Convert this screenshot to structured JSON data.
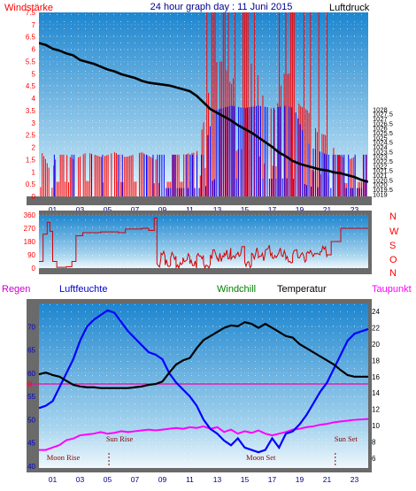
{
  "page": {
    "title": "24 hour graph day : 11 Juni 2015"
  },
  "colors": {
    "frame": "#5a5a5a",
    "panel_top": "#1f86cf",
    "panel_bottom": "#eaf5fb",
    "wind": "#ff0000",
    "gust": "#0000ff",
    "pressure": "#000000",
    "direction": "#d40000",
    "temperature": "#000000",
    "humidity": "#0000ff",
    "dewpoint": "#ff00ff",
    "zero_line": "#ff00aa",
    "sun_moon": "#8b0000",
    "windchill_label": "#008000"
  },
  "chart_data": [
    {
      "type": "line",
      "name": "wind_pressure",
      "labels": {
        "left": "Windstärke",
        "right": "Luftdruck"
      },
      "x_ticks": [
        "01",
        "03",
        "05",
        "07",
        "09",
        "11",
        "13",
        "15",
        "17",
        "19",
        "21",
        "23"
      ],
      "x_range": [
        0,
        24
      ],
      "y_left": {
        "range": [
          0,
          7.5
        ],
        "ticks": [
          "0",
          "0.5",
          "1",
          "1.5",
          "2",
          "2.5",
          "3",
          "3.5",
          "4",
          "4.5",
          "5",
          "5.5",
          "6",
          "6.5",
          "7",
          "7.5"
        ]
      },
      "y_right": {
        "range": [
          1018.75,
          1038.25
        ],
        "ticks": [
          "1019",
          "1019.5",
          "1020",
          "1020.5",
          "1021",
          "1021.5",
          "1022",
          "1022.5",
          "1023",
          "1023.5",
          "1024",
          "1024.5",
          "1025",
          "1025.5",
          "1026",
          "1026.5",
          "1027",
          "1027.5",
          "1028"
        ]
      },
      "wind_level": [
        [
          0,
          0
        ],
        [
          0.2,
          1.8
        ],
        [
          0.5,
          1.5
        ],
        [
          0.9,
          0.9
        ],
        [
          1.3,
          1.7
        ],
        [
          2.0,
          1.7
        ],
        [
          2.6,
          1.5
        ],
        [
          3.5,
          1.8
        ],
        [
          4.6,
          1.6
        ],
        [
          5.5,
          1.8
        ],
        [
          6.3,
          1.6
        ],
        [
          7.5,
          1.8
        ],
        [
          8.5,
          1.5
        ],
        [
          9.3,
          1.7
        ],
        [
          10.4,
          1.7
        ],
        [
          11.5,
          1.8
        ],
        [
          12.2,
          3.5
        ],
        [
          12.6,
          5.3
        ],
        [
          13.0,
          5.5
        ],
        [
          13.5,
          5.5
        ],
        [
          14.0,
          4.5
        ],
        [
          14.5,
          5.5
        ],
        [
          15.2,
          5.5
        ],
        [
          15.8,
          5.3
        ],
        [
          16.5,
          3.7
        ],
        [
          17.3,
          3.5
        ],
        [
          17.8,
          5.0
        ],
        [
          18.3,
          5.0
        ],
        [
          19.0,
          3.7
        ],
        [
          19.6,
          3.5
        ],
        [
          20.3,
          2.6
        ],
        [
          20.9,
          2.5
        ],
        [
          21.8,
          1.7
        ],
        [
          22.6,
          1.5
        ],
        [
          23.3,
          1.7
        ],
        [
          24,
          1.7
        ]
      ],
      "gust_level": [
        [
          0,
          1.7
        ],
        [
          2.0,
          1.7
        ],
        [
          4.0,
          1.7
        ],
        [
          6.0,
          1.7
        ],
        [
          8.0,
          1.7
        ],
        [
          9.5,
          1.7
        ],
        [
          11.0,
          1.7
        ],
        [
          12.0,
          1.7
        ],
        [
          12.4,
          2.7
        ],
        [
          12.8,
          3.5
        ],
        [
          14.0,
          3.7
        ],
        [
          15.0,
          3.6
        ],
        [
          16.0,
          3.7
        ],
        [
          17.0,
          3.6
        ],
        [
          18.0,
          3.7
        ],
        [
          18.6,
          3.6
        ],
        [
          19.2,
          2.7
        ],
        [
          19.8,
          2.0
        ],
        [
          21.0,
          1.7
        ],
        [
          24,
          1.7
        ]
      ],
      "pressure": [
        [
          0.0,
          1035.0
        ],
        [
          0.5,
          1034.8
        ],
        [
          1.0,
          1034.4
        ],
        [
          1.5,
          1034.2
        ],
        [
          2.0,
          1033.9
        ],
        [
          2.5,
          1033.7
        ],
        [
          3.0,
          1033.2
        ],
        [
          3.5,
          1033.0
        ],
        [
          4.0,
          1032.8
        ],
        [
          4.5,
          1032.5
        ],
        [
          5.0,
          1032.2
        ],
        [
          5.5,
          1032.0
        ],
        [
          6.0,
          1031.7
        ],
        [
          6.5,
          1031.5
        ],
        [
          7.0,
          1031.3
        ],
        [
          7.5,
          1031.0
        ],
        [
          8.0,
          1030.8
        ],
        [
          8.5,
          1030.7
        ],
        [
          9.0,
          1030.6
        ],
        [
          9.5,
          1030.5
        ],
        [
          10.0,
          1030.3
        ],
        [
          10.5,
          1030.1
        ],
        [
          11.0,
          1029.9
        ],
        [
          11.5,
          1029.4
        ],
        [
          12.0,
          1028.7
        ],
        [
          12.5,
          1028.0
        ],
        [
          13.0,
          1027.6
        ],
        [
          13.5,
          1027.2
        ],
        [
          14.0,
          1026.8
        ],
        [
          14.5,
          1026.3
        ],
        [
          15.0,
          1025.9
        ],
        [
          15.5,
          1025.5
        ],
        [
          16.0,
          1025.0
        ],
        [
          16.5,
          1024.5
        ],
        [
          17.0,
          1024.0
        ],
        [
          17.5,
          1023.4
        ],
        [
          18.0,
          1023.0
        ],
        [
          18.5,
          1022.5
        ],
        [
          19.0,
          1022.2
        ],
        [
          19.5,
          1022.0
        ],
        [
          20.0,
          1021.8
        ],
        [
          20.5,
          1021.6
        ],
        [
          21.0,
          1021.5
        ],
        [
          21.5,
          1021.3
        ],
        [
          22.0,
          1021.2
        ],
        [
          22.5,
          1021.0
        ],
        [
          23.0,
          1020.8
        ],
        [
          23.5,
          1020.5
        ],
        [
          24.0,
          1020.3
        ]
      ]
    },
    {
      "type": "line",
      "name": "wind_direction",
      "x_range": [
        0,
        24
      ],
      "y_left": {
        "range": [
          0,
          360
        ],
        "ticks": [
          "0",
          "90",
          "180",
          "270",
          "360"
        ]
      },
      "y_right_labels": [
        "N",
        "W",
        "S",
        "O",
        "N"
      ],
      "series": [
        [
          0,
          45
        ],
        [
          0.3,
          230
        ],
        [
          0.6,
          310
        ],
        [
          0.8,
          250
        ],
        [
          1.0,
          45
        ],
        [
          1.3,
          5
        ],
        [
          2.0,
          10
        ],
        [
          2.4,
          45
        ],
        [
          2.7,
          220
        ],
        [
          3.2,
          240
        ],
        [
          4.5,
          245
        ],
        [
          5.8,
          240
        ],
        [
          6.3,
          265
        ],
        [
          7.5,
          270
        ],
        [
          8.0,
          255
        ],
        [
          8.4,
          340
        ],
        [
          8.6,
          30
        ],
        [
          8.9,
          100
        ],
        [
          9.2,
          20
        ],
        [
          9.6,
          70
        ],
        [
          10.0,
          5
        ],
        [
          10.5,
          70
        ],
        [
          11.0,
          30
        ],
        [
          11.5,
          80
        ],
        [
          12.0,
          30
        ],
        [
          12.5,
          90
        ],
        [
          13.0,
          70
        ],
        [
          13.5,
          100
        ],
        [
          14.0,
          60
        ],
        [
          14.5,
          110
        ],
        [
          15.0,
          40
        ],
        [
          15.5,
          100
        ],
        [
          16.0,
          70
        ],
        [
          16.5,
          120
        ],
        [
          17.0,
          70
        ],
        [
          17.5,
          110
        ],
        [
          18.0,
          60
        ],
        [
          18.5,
          90
        ],
        [
          19.0,
          70
        ],
        [
          19.5,
          100
        ],
        [
          20.0,
          80
        ],
        [
          20.5,
          110
        ],
        [
          21.0,
          90
        ],
        [
          21.3,
          180
        ],
        [
          22.0,
          270
        ],
        [
          24,
          270
        ]
      ]
    },
    {
      "type": "line",
      "name": "climate",
      "labels": {
        "regen": "Regen",
        "humidity": "Luftfeuchte",
        "windchill": "Windchill",
        "temperature": "Temperatur",
        "dewpoint": "Taupunkt"
      },
      "x_range": [
        0,
        24
      ],
      "y_left": {
        "range": [
          40,
          75
        ],
        "ticks": [
          "40",
          "45",
          "50",
          "55",
          "60",
          "65",
          "70"
        ]
      },
      "y_right": {
        "range": [
          5,
          25
        ],
        "ticks": [
          "6",
          "8",
          "10",
          "12",
          "14",
          "16",
          "18",
          "20",
          "22",
          "24"
        ]
      },
      "zero_marker": "0",
      "temperature": [
        [
          0,
          16.3
        ],
        [
          0.5,
          16.5
        ],
        [
          1.0,
          16.2
        ],
        [
          1.5,
          16.0
        ],
        [
          2.0,
          15.5
        ],
        [
          2.5,
          15.0
        ],
        [
          3.0,
          14.8
        ],
        [
          3.5,
          14.7
        ],
        [
          4.0,
          14.7
        ],
        [
          4.5,
          14.6
        ],
        [
          5.0,
          14.6
        ],
        [
          5.5,
          14.6
        ],
        [
          6.0,
          14.6
        ],
        [
          6.5,
          14.6
        ],
        [
          7.0,
          14.7
        ],
        [
          7.5,
          14.8
        ],
        [
          8.0,
          15.0
        ],
        [
          8.5,
          15.1
        ],
        [
          9.0,
          15.4
        ],
        [
          9.5,
          16.5
        ],
        [
          10.0,
          17.5
        ],
        [
          10.5,
          18.0
        ],
        [
          11.0,
          18.3
        ],
        [
          11.5,
          19.5
        ],
        [
          12.0,
          20.5
        ],
        [
          12.5,
          21.0
        ],
        [
          13.0,
          21.5
        ],
        [
          13.5,
          22.0
        ],
        [
          14.0,
          22.3
        ],
        [
          14.5,
          22.2
        ],
        [
          15.0,
          22.7
        ],
        [
          15.5,
          22.5
        ],
        [
          16.0,
          22.0
        ],
        [
          16.5,
          22.5
        ],
        [
          17.0,
          22.0
        ],
        [
          17.5,
          21.5
        ],
        [
          18.0,
          21.0
        ],
        [
          18.5,
          20.8
        ],
        [
          19.0,
          20.0
        ],
        [
          19.5,
          19.5
        ],
        [
          20.0,
          19.0
        ],
        [
          20.5,
          18.5
        ],
        [
          21.0,
          18.0
        ],
        [
          21.5,
          17.5
        ],
        [
          22.0,
          16.8
        ],
        [
          22.5,
          16.2
        ],
        [
          23.0,
          16.0
        ],
        [
          24.0,
          16.0
        ]
      ],
      "humidity": [
        [
          0,
          52.5
        ],
        [
          0.5,
          53.0
        ],
        [
          1.0,
          54.0
        ],
        [
          1.5,
          57.0
        ],
        [
          2.0,
          60.0
        ],
        [
          2.5,
          63.0
        ],
        [
          3.0,
          67.0
        ],
        [
          3.5,
          70.0
        ],
        [
          4.0,
          71.5
        ],
        [
          4.5,
          72.5
        ],
        [
          5.0,
          73.5
        ],
        [
          5.5,
          73.0
        ],
        [
          6.0,
          71.0
        ],
        [
          6.5,
          69.0
        ],
        [
          7.0,
          67.5
        ],
        [
          7.5,
          66.0
        ],
        [
          8.0,
          64.5
        ],
        [
          8.5,
          64.0
        ],
        [
          9.0,
          63.0
        ],
        [
          9.5,
          60.0
        ],
        [
          10.0,
          58.0
        ],
        [
          10.5,
          56.5
        ],
        [
          11.0,
          55.0
        ],
        [
          11.5,
          53.0
        ],
        [
          12.0,
          50.0
        ],
        [
          12.5,
          48.0
        ],
        [
          13.0,
          47.0
        ],
        [
          13.5,
          45.5
        ],
        [
          14.0,
          44.5
        ],
        [
          14.5,
          46.0
        ],
        [
          15.0,
          44.0
        ],
        [
          15.5,
          43.5
        ],
        [
          16.0,
          43.0
        ],
        [
          16.5,
          43.5
        ],
        [
          17.0,
          46.0
        ],
        [
          17.5,
          44.0
        ],
        [
          18.0,
          47.0
        ],
        [
          18.5,
          47.5
        ],
        [
          19.0,
          49.0
        ],
        [
          19.5,
          51.0
        ],
        [
          20.0,
          53.5
        ],
        [
          20.5,
          56.0
        ],
        [
          21.0,
          58.0
        ],
        [
          21.5,
          61.0
        ],
        [
          22.0,
          64.0
        ],
        [
          22.5,
          67.0
        ],
        [
          23.0,
          68.5
        ],
        [
          24.0,
          69.5
        ]
      ],
      "dewpoint": [
        [
          0,
          7.0
        ],
        [
          0.5,
          7.0
        ],
        [
          1.0,
          7.3
        ],
        [
          1.5,
          7.6
        ],
        [
          2.0,
          8.2
        ],
        [
          2.5,
          8.4
        ],
        [
          3.0,
          8.8
        ],
        [
          3.5,
          8.9
        ],
        [
          4.0,
          9.0
        ],
        [
          4.5,
          9.2
        ],
        [
          5.0,
          9.0
        ],
        [
          5.5,
          9.1
        ],
        [
          6.0,
          9.3
        ],
        [
          6.5,
          9.2
        ],
        [
          7.0,
          9.3
        ],
        [
          7.5,
          9.4
        ],
        [
          8.0,
          9.5
        ],
        [
          8.5,
          9.4
        ],
        [
          9.0,
          9.5
        ],
        [
          9.5,
          9.6
        ],
        [
          10.0,
          9.7
        ],
        [
          10.5,
          9.6
        ],
        [
          11.0,
          9.8
        ],
        [
          11.5,
          9.7
        ],
        [
          12.0,
          9.9
        ],
        [
          12.5,
          9.6
        ],
        [
          13.0,
          9.8
        ],
        [
          13.5,
          9.2
        ],
        [
          14.0,
          9.5
        ],
        [
          14.5,
          9.0
        ],
        [
          15.0,
          9.3
        ],
        [
          15.5,
          9.1
        ],
        [
          16.0,
          9.4
        ],
        [
          16.5,
          9.0
        ],
        [
          17.0,
          8.8
        ],
        [
          17.5,
          9.0
        ],
        [
          18.0,
          9.2
        ],
        [
          18.5,
          9.5
        ],
        [
          19.0,
          9.6
        ],
        [
          19.5,
          9.8
        ],
        [
          20.0,
          9.9
        ],
        [
          20.5,
          10.1
        ],
        [
          21.0,
          10.2
        ],
        [
          21.5,
          10.4
        ],
        [
          22.0,
          10.5
        ],
        [
          22.5,
          10.6
        ],
        [
          23.0,
          10.7
        ],
        [
          24.0,
          10.8
        ]
      ],
      "zero_line": [
        [
          0,
          0
        ],
        [
          24,
          0
        ]
      ],
      "events": {
        "moon_rise": {
          "label": "Moon Rise",
          "hour": 1.0
        },
        "sun_rise": {
          "label": "Sun Rise",
          "hour": 5.1
        },
        "moon_set": {
          "label": "Moon Set",
          "hour": 15.4
        },
        "sun_set": {
          "label": "Sun Set",
          "hour": 21.6
        }
      }
    }
  ]
}
